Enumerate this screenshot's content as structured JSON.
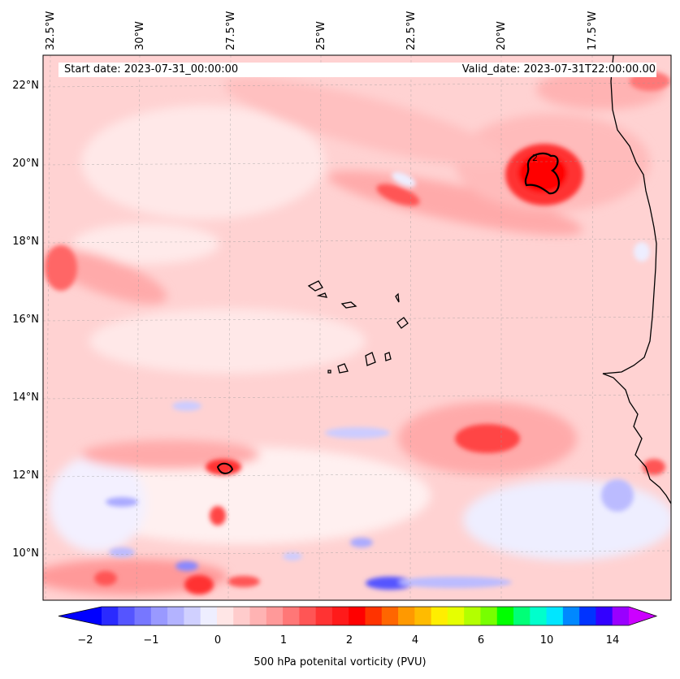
{
  "map": {
    "start_date": "Start date: 2023-07-31_00:00:00",
    "valid_date": "Valid_date: 2023-07-31T22:00:00.00",
    "lon_labels": [
      "32.5°W",
      "30°W",
      "27.5°W",
      "25°W",
      "22.5°W",
      "20°W",
      "17.5°W"
    ],
    "lat_labels": [
      "22°N",
      "20°N",
      "18°N",
      "16°N",
      "14°N",
      "12°N",
      "10°N"
    ],
    "contour_label": "2"
  },
  "colorbar": {
    "title": "500 hPa potenital vorticity (PVU)",
    "ticks": [
      "−2",
      "−1",
      "0",
      "1",
      "2",
      "4",
      "6",
      "10",
      "14"
    ],
    "colors": [
      "#0000ff",
      "#2a2aff",
      "#5555ff",
      "#7777ff",
      "#9999ff",
      "#b3b3ff",
      "#d0d0ff",
      "#eeeeff",
      "#ffe6e6",
      "#ffcccc",
      "#ffb3b3",
      "#ff9999",
      "#ff7777",
      "#ff5555",
      "#ff3333",
      "#ff1a1a",
      "#ff0000",
      "#ff3300",
      "#ff6600",
      "#ff9900",
      "#ffbb00",
      "#ffee00",
      "#e6ff00",
      "#b3ff00",
      "#77ff00",
      "#00ff00",
      "#00ff77",
      "#00ffcc",
      "#00e6ff",
      "#0088ff",
      "#0033ff",
      "#3300ff",
      "#9900ff",
      "#cc00ff"
    ]
  }
}
